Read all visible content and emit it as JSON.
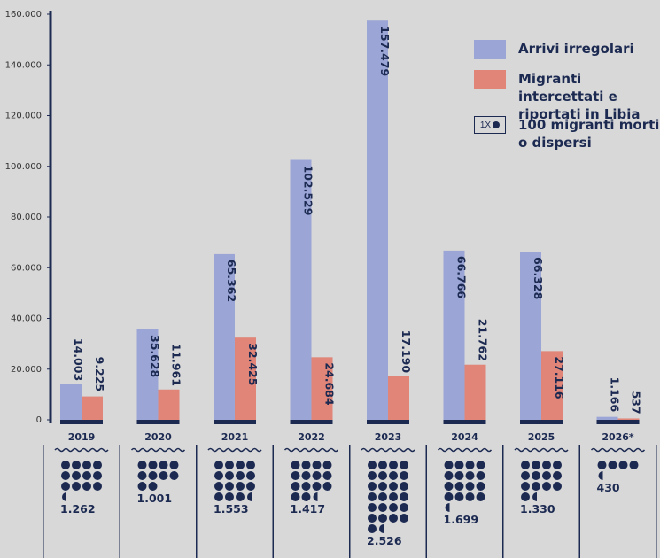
{
  "chart_data": {
    "type": "bar",
    "categories": [
      "2019",
      "2020",
      "2021",
      "2022",
      "2023",
      "2024",
      "2025",
      "2026*"
    ],
    "series": [
      {
        "name": "Arrivi irregolari",
        "color": "#9ba6d6",
        "values": [
          14003,
          35628,
          65362,
          102529,
          157479,
          66766,
          66328,
          1166
        ],
        "labels": [
          "14.003",
          "35.628",
          "65.362",
          "102.529",
          "157.479",
          "66.766",
          "66.328",
          "1.166"
        ]
      },
      {
        "name": "Migranti intercettati e riportati in Libia",
        "color": "#e08577",
        "values": [
          9225,
          11961,
          32425,
          24684,
          17190,
          21762,
          27116,
          537
        ],
        "labels": [
          "9.225",
          "11.961",
          "32.425",
          "24.684",
          "17.190",
          "21.762",
          "27.116",
          "537"
        ]
      }
    ],
    "deaths": {
      "name": "100 migranti morti o dispersi",
      "unit_per_dot": 100,
      "values": [
        1262,
        1001,
        1553,
        1417,
        2526,
        1699,
        1330,
        430
      ],
      "labels": [
        "1.262",
        "1.001",
        "1.553",
        "1.417",
        "2.526",
        "1.699",
        "1.330",
        "430"
      ]
    },
    "ylim": [
      0,
      160000
    ],
    "yticks": [
      0,
      20000,
      40000,
      60000,
      80000,
      100000,
      120000,
      140000,
      160000
    ],
    "ytick_labels": [
      "0",
      "20.000",
      "40.000",
      "60.000",
      "80.000",
      "100.000",
      "120.000",
      "140.000",
      "160.000"
    ],
    "grid": false,
    "legend_position": "top-right"
  },
  "legend": {
    "arrivals": "Arrivi irregolari",
    "intercepted": "Migranti intercettati e riportati in Libia",
    "dots_prefix": "1X",
    "dots": "100 migranti morti o dispersi"
  },
  "colors": {
    "navy": "#1c2a52",
    "background": "#d8d8d8"
  }
}
